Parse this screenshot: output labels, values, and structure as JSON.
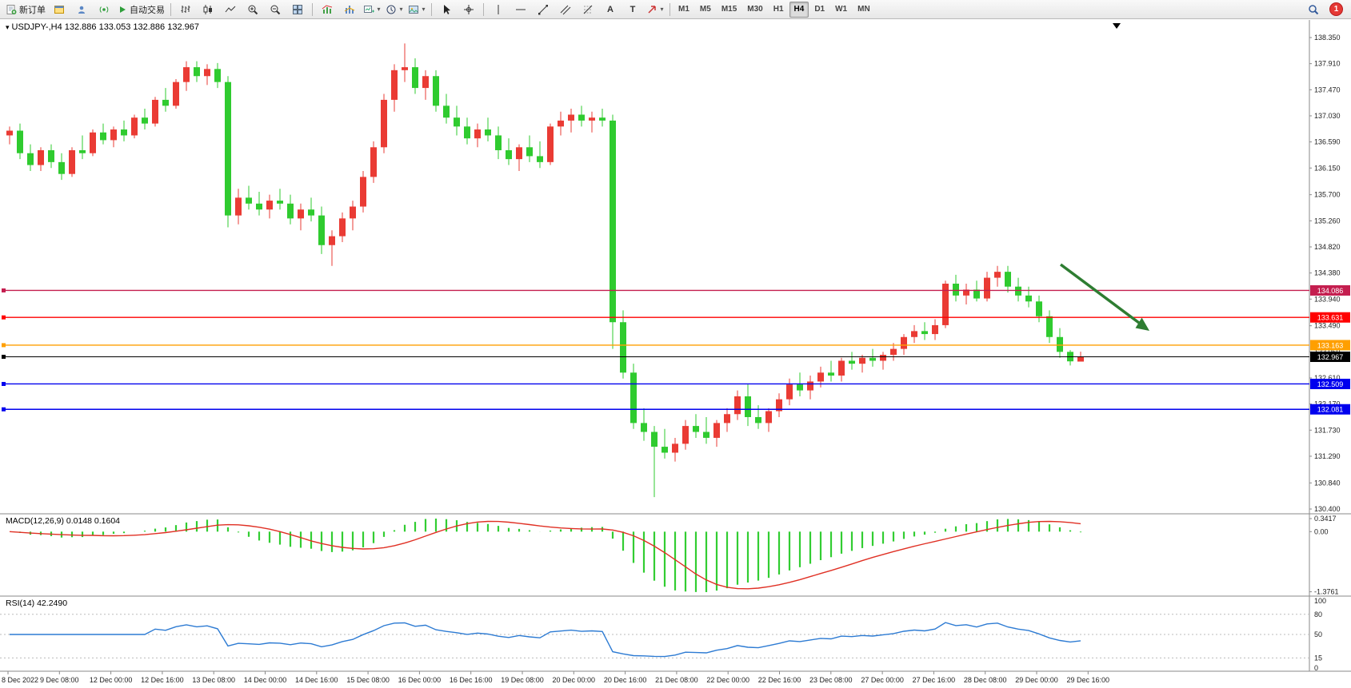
{
  "toolbar": {
    "new_order_label": "新订单",
    "autotrading_label": "自动交易",
    "timeframe_labels": [
      "M1",
      "M5",
      "M15",
      "M30",
      "H1",
      "H4",
      "D1",
      "W1",
      "MN"
    ],
    "active_timeframe": "H4",
    "notification_count": "1"
  },
  "chart": {
    "title": "USDJPY-,H4  132.886 133.053 132.886 132.967",
    "symbol": "USDJPY-",
    "period": "H4",
    "ohlc_readout": {
      "open": "132.886",
      "high": "133.053",
      "low": "132.886",
      "close": "132.967"
    },
    "price_axis_ticks": [
      "138.350",
      "137.910",
      "137.470",
      "137.030",
      "136.590",
      "136.150",
      "135.700",
      "135.260",
      "134.820",
      "134.380",
      "133.940",
      "133.490",
      "133.050",
      "132.610",
      "132.170",
      "131.730",
      "131.290",
      "130.840",
      "130.400"
    ],
    "time_axis_labels": [
      "8 Dec 2022",
      "9 Dec 08:00",
      "12 Dec 00:00",
      "12 Dec 16:00",
      "13 Dec 08:00",
      "14 Dec 00:00",
      "14 Dec 16:00",
      "15 Dec 08:00",
      "16 Dec 00:00",
      "16 Dec 16:00",
      "19 Dec 08:00",
      "20 Dec 00:00",
      "20 Dec 16:00",
      "21 Dec 08:00",
      "22 Dec 00:00",
      "22 Dec 16:00",
      "23 Dec 08:00",
      "27 Dec 00:00",
      "27 Dec 16:00",
      "28 Dec 08:00",
      "29 Dec 00:00",
      "29 Dec 16:00"
    ],
    "levels": [
      {
        "label": "134.086",
        "price": 134.086,
        "color": "#C41E4F"
      },
      {
        "label": "133.631",
        "price": 133.631,
        "color": "#FF0000"
      },
      {
        "label": "133.163",
        "price": 133.163,
        "color": "#FF9F00"
      },
      {
        "label": "132.967",
        "price": 132.967,
        "color": "#000000"
      },
      {
        "label": "132.509",
        "price": 132.509,
        "color": "#0000EE"
      },
      {
        "label": "132.081",
        "price": 132.081,
        "color": "#0000EE"
      }
    ],
    "arrow": {
      "color": "#2E7D32"
    }
  },
  "indicators": {
    "macd": {
      "label": "MACD(12,26,9) 0.0148 0.1604",
      "axis_labels": [
        "0.3417",
        "0.00",
        "-1.3761"
      ],
      "bar_color": "#32CD32",
      "signal_color": "#E03024"
    },
    "rsi": {
      "label": "RSI(14) 42.2490",
      "axis_labels": [
        "100",
        "80",
        "50",
        "15",
        "0"
      ],
      "levels": [
        80,
        50,
        15
      ],
      "line_color": "#2D7BD3"
    }
  },
  "chart_data": {
    "type": "candlestick",
    "symbol": "USDJPY-",
    "timeframe": "H4",
    "up_color": "#EA3B34",
    "down_color": "#2FCB2F",
    "price_range": [
      130.4,
      138.35
    ],
    "ohlc": [
      [
        136.7,
        136.85,
        136.55,
        136.78
      ],
      [
        136.78,
        136.9,
        136.3,
        136.4
      ],
      [
        136.4,
        136.55,
        136.1,
        136.2
      ],
      [
        136.2,
        136.5,
        136.1,
        136.45
      ],
      [
        136.45,
        136.55,
        136.15,
        136.25
      ],
      [
        136.25,
        136.4,
        135.95,
        136.05
      ],
      [
        136.05,
        136.5,
        136.0,
        136.45
      ],
      [
        136.45,
        136.7,
        136.3,
        136.4
      ],
      [
        136.4,
        136.8,
        136.35,
        136.75
      ],
      [
        136.75,
        136.9,
        136.55,
        136.62
      ],
      [
        136.62,
        136.85,
        136.5,
        136.8
      ],
      [
        136.8,
        136.95,
        136.6,
        136.7
      ],
      [
        136.7,
        137.05,
        136.65,
        137.0
      ],
      [
        137.0,
        137.15,
        136.8,
        136.9
      ],
      [
        136.9,
        137.35,
        136.85,
        137.3
      ],
      [
        137.3,
        137.5,
        137.1,
        137.2
      ],
      [
        137.2,
        137.65,
        137.15,
        137.6
      ],
      [
        137.6,
        137.95,
        137.45,
        137.85
      ],
      [
        137.85,
        137.95,
        137.6,
        137.7
      ],
      [
        137.7,
        137.9,
        137.55,
        137.82
      ],
      [
        137.82,
        137.92,
        137.5,
        137.6
      ],
      [
        137.6,
        137.7,
        135.15,
        135.35
      ],
      [
        135.35,
        135.8,
        135.2,
        135.65
      ],
      [
        135.65,
        135.85,
        135.45,
        135.55
      ],
      [
        135.55,
        135.75,
        135.35,
        135.45
      ],
      [
        135.45,
        135.7,
        135.3,
        135.6
      ],
      [
        135.6,
        135.8,
        135.45,
        135.55
      ],
      [
        135.55,
        135.7,
        135.2,
        135.3
      ],
      [
        135.3,
        135.55,
        135.1,
        135.45
      ],
      [
        135.45,
        135.65,
        135.25,
        135.35
      ],
      [
        135.35,
        135.5,
        134.7,
        134.85
      ],
      [
        134.85,
        135.1,
        134.5,
        135.0
      ],
      [
        135.0,
        135.4,
        134.9,
        135.3
      ],
      [
        135.3,
        135.6,
        135.1,
        135.5
      ],
      [
        135.5,
        136.1,
        135.4,
        136.0
      ],
      [
        136.0,
        136.6,
        135.9,
        136.5
      ],
      [
        136.5,
        137.4,
        136.4,
        137.3
      ],
      [
        137.3,
        137.9,
        137.1,
        137.8
      ],
      [
        137.8,
        138.25,
        137.6,
        137.85
      ],
      [
        137.85,
        138.0,
        137.4,
        137.5
      ],
      [
        137.5,
        137.8,
        137.3,
        137.7
      ],
      [
        137.7,
        137.8,
        137.1,
        137.2
      ],
      [
        137.2,
        137.4,
        136.9,
        137.0
      ],
      [
        137.0,
        137.2,
        136.7,
        136.85
      ],
      [
        136.85,
        137.0,
        136.55,
        136.65
      ],
      [
        136.65,
        136.9,
        136.5,
        136.8
      ],
      [
        136.8,
        137.0,
        136.6,
        136.7
      ],
      [
        136.7,
        136.85,
        136.3,
        136.45
      ],
      [
        136.45,
        136.65,
        136.2,
        136.3
      ],
      [
        136.3,
        136.55,
        136.1,
        136.5
      ],
      [
        136.5,
        136.7,
        136.25,
        136.35
      ],
      [
        136.35,
        136.6,
        136.15,
        136.25
      ],
      [
        136.25,
        136.9,
        136.2,
        136.85
      ],
      [
        136.85,
        137.1,
        136.7,
        136.95
      ],
      [
        136.95,
        137.15,
        136.75,
        137.05
      ],
      [
        137.05,
        137.2,
        136.85,
        136.95
      ],
      [
        136.95,
        137.1,
        136.75,
        137.0
      ],
      [
        137.0,
        137.15,
        136.85,
        136.95
      ],
      [
        136.95,
        137.05,
        133.1,
        133.55
      ],
      [
        133.55,
        133.75,
        132.6,
        132.7
      ],
      [
        132.7,
        132.85,
        131.75,
        131.85
      ],
      [
        131.85,
        132.1,
        131.55,
        131.7
      ],
      [
        131.7,
        131.8,
        130.6,
        131.45
      ],
      [
        131.45,
        131.75,
        131.25,
        131.35
      ],
      [
        131.35,
        131.6,
        131.2,
        131.5
      ],
      [
        131.5,
        131.9,
        131.4,
        131.8
      ],
      [
        131.8,
        132.0,
        131.6,
        131.7
      ],
      [
        131.7,
        131.95,
        131.5,
        131.6
      ],
      [
        131.6,
        131.9,
        131.45,
        131.85
      ],
      [
        131.85,
        132.1,
        131.7,
        132.0
      ],
      [
        132.0,
        132.4,
        131.9,
        132.3
      ],
      [
        132.3,
        132.5,
        131.8,
        131.95
      ],
      [
        131.95,
        132.15,
        131.75,
        131.85
      ],
      [
        131.85,
        132.1,
        131.7,
        132.05
      ],
      [
        132.05,
        132.35,
        131.95,
        132.25
      ],
      [
        132.25,
        132.6,
        132.15,
        132.5
      ],
      [
        132.5,
        132.7,
        132.3,
        132.4
      ],
      [
        132.4,
        132.65,
        132.25,
        132.55
      ],
      [
        132.55,
        132.8,
        132.45,
        132.7
      ],
      [
        132.7,
        132.9,
        132.55,
        132.65
      ],
      [
        132.65,
        132.95,
        132.55,
        132.9
      ],
      [
        132.9,
        133.05,
        132.75,
        132.85
      ],
      [
        132.85,
        133.0,
        132.7,
        132.95
      ],
      [
        132.95,
        133.1,
        132.8,
        132.9
      ],
      [
        132.9,
        133.05,
        132.75,
        133.0
      ],
      [
        133.0,
        133.2,
        132.9,
        133.1
      ],
      [
        133.1,
        133.35,
        133.0,
        133.3
      ],
      [
        133.3,
        133.5,
        133.2,
        133.4
      ],
      [
        133.4,
        133.55,
        133.25,
        133.35
      ],
      [
        133.35,
        133.6,
        133.25,
        133.5
      ],
      [
        133.5,
        134.25,
        133.45,
        134.2
      ],
      [
        134.2,
        134.35,
        133.9,
        134.0
      ],
      [
        134.0,
        134.2,
        133.85,
        134.1
      ],
      [
        134.1,
        134.25,
        133.9,
        133.95
      ],
      [
        133.95,
        134.4,
        133.9,
        134.3
      ],
      [
        134.3,
        134.5,
        134.15,
        134.4
      ],
      [
        134.4,
        134.5,
        134.05,
        134.15
      ],
      [
        134.15,
        134.3,
        133.9,
        134.0
      ],
      [
        134.0,
        134.15,
        133.8,
        133.9
      ],
      [
        133.9,
        134.0,
        133.55,
        133.65
      ],
      [
        133.65,
        133.75,
        133.2,
        133.3
      ],
      [
        133.3,
        133.45,
        132.95,
        133.05
      ],
      [
        133.05,
        133.08,
        132.82,
        132.89
      ],
      [
        132.886,
        133.053,
        132.886,
        132.967
      ]
    ]
  }
}
